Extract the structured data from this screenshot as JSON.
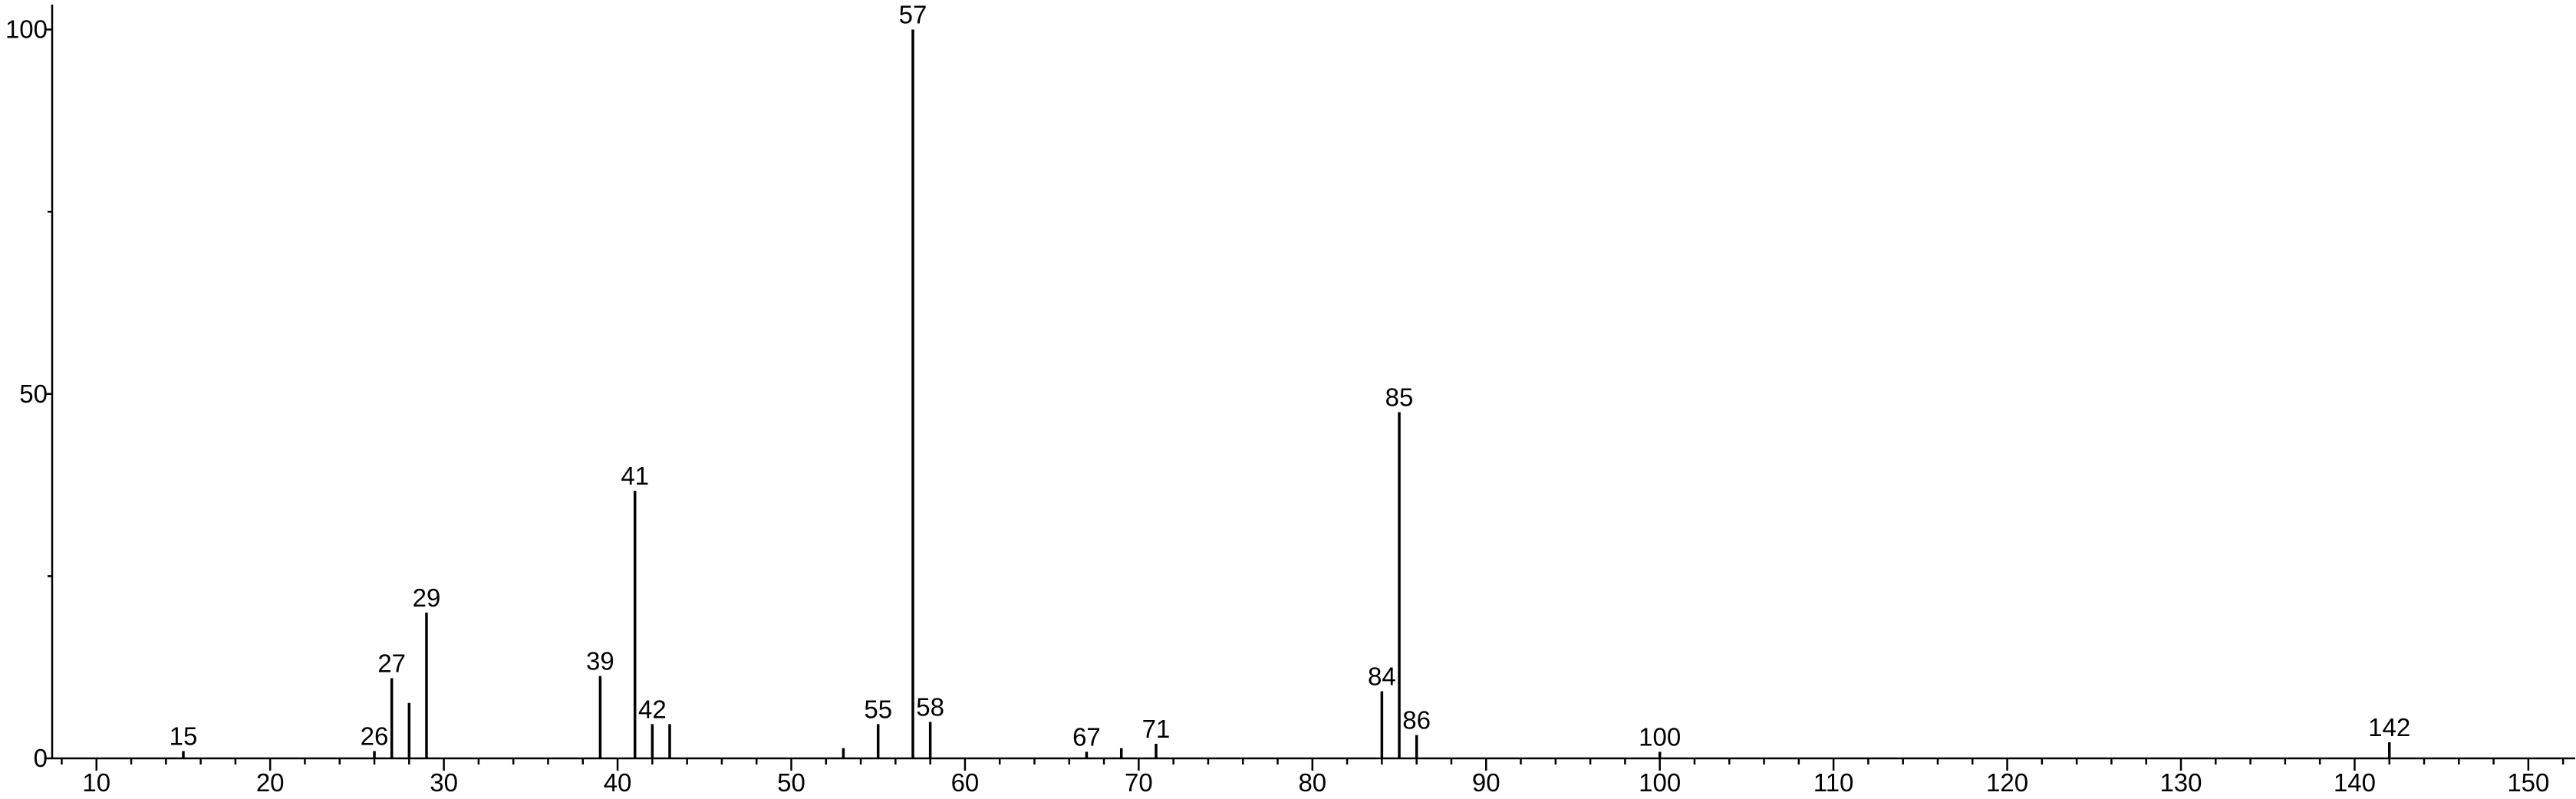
{
  "chart_data": {
    "type": "stem",
    "x": [
      15,
      26,
      27,
      28,
      29,
      39,
      41,
      42,
      43,
      53,
      55,
      57,
      58,
      67,
      69,
      71,
      84,
      85,
      86,
      100,
      142
    ],
    "values": [
      1,
      1,
      11,
      7.6,
      20,
      11.3,
      36.7,
      4.7,
      4.7,
      1.4,
      4.7,
      100,
      5,
      0.9,
      1.4,
      2,
      9.2,
      47.5,
      3.2,
      0.9,
      2.2
    ],
    "point_labels": [
      "15",
      "26",
      "27",
      null,
      "29",
      "39",
      "41",
      "42",
      null,
      null,
      "55",
      "57",
      "58",
      "67",
      null,
      "71",
      "84",
      "85",
      "86",
      "100",
      "142"
    ],
    "color": "#000000",
    "xlim": [
      7.45,
      152.7
    ],
    "xticks": [
      10,
      20,
      30,
      40,
      50,
      60,
      70,
      80,
      90,
      100,
      110,
      120,
      130,
      140,
      150
    ],
    "xminor_ticks": [
      8,
      12,
      14,
      16,
      18,
      22,
      24,
      26,
      28,
      32,
      34,
      36,
      38,
      42,
      44,
      46,
      48,
      52,
      54,
      56,
      58,
      62,
      64,
      66,
      68,
      72,
      74,
      76,
      78,
      82,
      84,
      86,
      88,
      92,
      94,
      96,
      98,
      102,
      104,
      106,
      108,
      112,
      114,
      116,
      118,
      122,
      124,
      126,
      128,
      132,
      134,
      136,
      138,
      142,
      144,
      146,
      148,
      152
    ],
    "ylim": [
      0,
      103
    ],
    "yticks": [
      0,
      50,
      100
    ],
    "yminor_ticks": [
      25,
      75
    ]
  }
}
